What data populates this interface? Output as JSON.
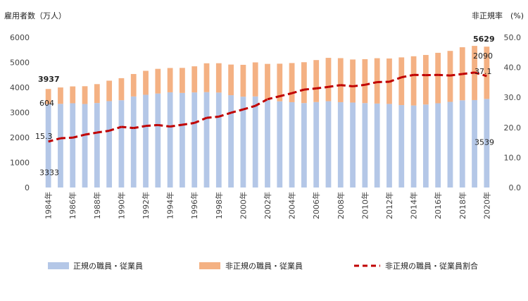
{
  "chart_data": {
    "type": "bar",
    "stacked": true,
    "title": "",
    "ylabel_left": "雇用者数（万人）",
    "ylabel_right": "非正規率　(%)",
    "ylim_left": [
      0,
      6000
    ],
    "ylim_right": [
      0.0,
      50.0
    ],
    "yticks_left": [
      "0",
      "1000",
      "2000",
      "3000",
      "4000",
      "5000",
      "6000"
    ],
    "yticks_right": [
      "0.0",
      "10.0",
      "20.0",
      "30.0",
      "40.0",
      "50.0"
    ],
    "grid": false,
    "legend_position": "bottom",
    "x_tick_labels": [
      "1984年",
      "1986年",
      "1988年",
      "1990年",
      "1992年",
      "1994年",
      "1996年",
      "1998年",
      "2000年",
      "2002年",
      "2004年",
      "2006年",
      "2008年",
      "2010年",
      "2012年",
      "2014年",
      "2016年",
      "2018年",
      "2020年"
    ],
    "categories": [
      "1984",
      "1985",
      "1986",
      "1987",
      "1988",
      "1989",
      "1990",
      "1991",
      "1992",
      "1993",
      "1994",
      "1995",
      "1996",
      "1997",
      "1998",
      "1999",
      "2000",
      "2001",
      "2002",
      "2003",
      "2004",
      "2005",
      "2006",
      "2007",
      "2008",
      "2009",
      "2010",
      "2011",
      "2012",
      "2013",
      "2014",
      "2015",
      "2016",
      "2017",
      "2018",
      "2019",
      "2020"
    ],
    "series": [
      {
        "name": "正規の職員・従業員",
        "axis": "left",
        "color": "#b4c7e7",
        "values": [
          3333,
          3343,
          3367,
          3337,
          3377,
          3452,
          3488,
          3639,
          3705,
          3756,
          3805,
          3779,
          3800,
          3812,
          3794,
          3688,
          3630,
          3640,
          3489,
          3444,
          3410,
          3374,
          3415,
          3449,
          3410,
          3395,
          3374,
          3355,
          3340,
          3294,
          3278,
          3317,
          3367,
          3423,
          3485,
          3494,
          3539
        ]
      },
      {
        "name": "非正規の職員・従業員",
        "axis": "left",
        "color": "#f4b183",
        "values": [
          604,
          655,
          673,
          711,
          755,
          817,
          881,
          897,
          958,
          986,
          971,
          1001,
          1043,
          1152,
          1173,
          1225,
          1273,
          1360,
          1451,
          1504,
          1564,
          1633,
          1678,
          1732,
          1760,
          1721,
          1755,
          1812,
          1816,
          1906,
          1967,
          1980,
          2016,
          2036,
          2120,
          2165,
          2090
        ]
      },
      {
        "name": "非正規の職員・従業員割合",
        "axis": "right",
        "type": "line",
        "color": "#c00000",
        "line_style": "dashed",
        "values": [
          15.3,
          16.4,
          16.6,
          17.6,
          18.3,
          18.9,
          20.2,
          19.8,
          20.5,
          20.8,
          20.3,
          20.9,
          21.5,
          23.2,
          23.6,
          24.9,
          26.0,
          27.2,
          29.4,
          30.4,
          31.4,
          32.6,
          33.0,
          33.5,
          34.1,
          33.7,
          34.2,
          35.1,
          35.2,
          36.7,
          37.5,
          37.4,
          37.5,
          37.3,
          37.8,
          38.3,
          37.1
        ]
      }
    ],
    "annotations": [
      {
        "text": "3937",
        "bold": true,
        "anchor": "1984-total"
      },
      {
        "text": "604",
        "bold": false,
        "anchor": "1984-nonregular"
      },
      {
        "text": "15.3",
        "bold": false,
        "anchor": "1984-ratio"
      },
      {
        "text": "3333",
        "bold": false,
        "anchor": "1984-regular"
      },
      {
        "text": "5629",
        "bold": true,
        "anchor": "2020-total"
      },
      {
        "text": "2090",
        "bold": false,
        "anchor": "2020-nonregular"
      },
      {
        "text": "37.1",
        "bold": false,
        "anchor": "2020-ratio"
      },
      {
        "text": "3539",
        "bold": false,
        "anchor": "2020-regular"
      }
    ]
  }
}
